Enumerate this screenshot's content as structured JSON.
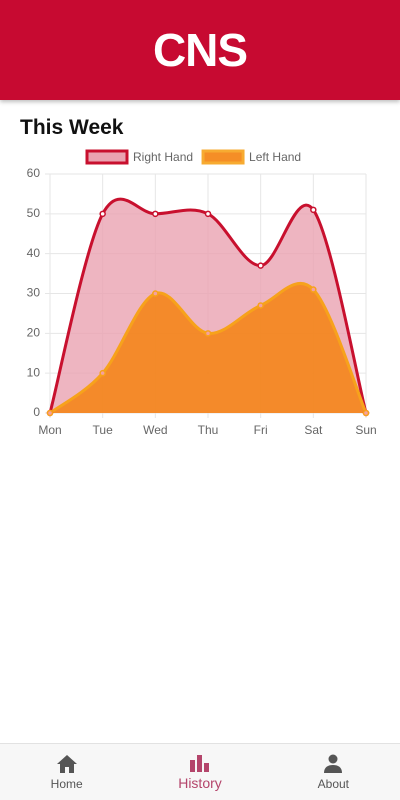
{
  "header": {
    "logo": "CNS"
  },
  "section_title": "This Week",
  "chart_data": {
    "type": "line",
    "categories": [
      "Mon",
      "Tue",
      "Wed",
      "Thu",
      "Fri",
      "Sat",
      "Sun"
    ],
    "series": [
      {
        "name": "Right Hand",
        "color": "#c8102e",
        "fill": "#eaa3b1",
        "values": [
          0,
          50,
          50,
          50,
          37,
          51,
          0
        ]
      },
      {
        "name": "Left Hand",
        "color": "#f7a21b",
        "fill": "#f5820f",
        "values": [
          0,
          10,
          30,
          20,
          27,
          31,
          0
        ]
      }
    ],
    "ylim": [
      0,
      60
    ],
    "yticks": [
      0,
      10,
      20,
      30,
      40,
      50,
      60
    ],
    "grid": true,
    "smooth": true
  },
  "nav": [
    {
      "label": "Home"
    },
    {
      "label": "History"
    },
    {
      "label": "About"
    }
  ]
}
